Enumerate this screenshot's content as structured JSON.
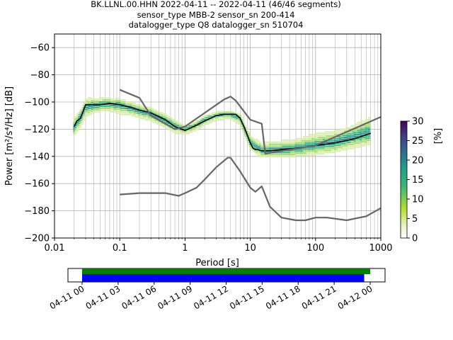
{
  "title_lines": [
    "BK.LLNL.00.HHN   2022-04-11 -- 2022-04-11  (46/46 segments)",
    "sensor_type MBB-2 sensor_sn 200-414",
    "datalogger_type Q8 datalogger_sn 510704"
  ],
  "chart_data": [
    {
      "type": "heatmap",
      "xlabel": "Period [s]",
      "ylabel": "Power [m²/s⁴/Hz] [dB]",
      "xscale": "log",
      "xlim": [
        0.01,
        1000
      ],
      "ylim": [
        -200,
        -50
      ],
      "x_ticks": [
        0.01,
        0.1,
        1,
        10,
        100,
        1000
      ],
      "x_tick_labels": [
        "0.01",
        "0.1",
        "1",
        "10",
        "100",
        "1000"
      ],
      "y_ticks": [
        -200,
        -180,
        -160,
        -140,
        -120,
        -100,
        -80,
        -60
      ],
      "y_tick_labels": [
        "−200",
        "−180",
        "−160",
        "−140",
        "−120",
        "−100",
        "−80",
        "−60"
      ],
      "grid": true,
      "colormap": "viridis_white",
      "series": [
        {
          "role": "median",
          "color": "#000000",
          "x": [
            0.02,
            0.022,
            0.025,
            0.03,
            0.04,
            0.05,
            0.07,
            0.1,
            0.15,
            0.2,
            0.3,
            0.5,
            0.7,
            1.0,
            1.5,
            2.0,
            3.0,
            4.0,
            5.0,
            6.0,
            7.0,
            8.0,
            10.0,
            11.0,
            12.0,
            13.0,
            15.0,
            17.0,
            20.0,
            30.0,
            50.0,
            100.0,
            200.0,
            400.0,
            700.0
          ],
          "values": [
            -118,
            -114,
            -112,
            -102,
            -102,
            -102,
            -101,
            -102,
            -104,
            -106,
            -108,
            -113,
            -118,
            -121,
            -117,
            -114,
            -110,
            -109,
            -109,
            -109,
            -112,
            -118,
            -130,
            -134,
            -135,
            -135,
            -136,
            -136,
            -136,
            -135,
            -134,
            -132,
            -130,
            -127,
            -123
          ]
        },
        {
          "role": "noise_model_high",
          "color": "#666666",
          "x": [
            0.1,
            0.2,
            0.3,
            0.7,
            1.0,
            2.0,
            4.0,
            5.0,
            6.0,
            10.0,
            15.0,
            17.0,
            30.0,
            100.0,
            1000.0
          ],
          "values": [
            -91,
            -97,
            -110,
            -120,
            -118,
            -108,
            -98,
            -96,
            -99,
            -113,
            -116,
            -138,
            -136,
            -132,
            -111
          ]
        },
        {
          "role": "noise_model_low",
          "color": "#666666",
          "x": [
            0.1,
            0.2,
            0.5,
            0.8,
            1.0,
            1.5,
            2.0,
            3.0,
            4.5,
            5.0,
            7.0,
            10.0,
            12.0,
            15.0,
            20.0,
            30.0,
            50.0,
            70.0,
            100.0,
            150.0,
            300.0,
            600.0,
            1000.0
          ],
          "values": [
            -168,
            -167,
            -167,
            -169,
            -167,
            -163,
            -157,
            -148,
            -141,
            -141,
            -151,
            -163,
            -166,
            -162,
            -177,
            -185,
            -187,
            -187,
            -185,
            -185,
            -187,
            -184,
            -178
          ]
        }
      ],
      "psd_bins": [
        {
          "x": 0.02,
          "values": [
            -124,
            -120,
            -117,
            -112
          ]
        },
        {
          "x": 0.025,
          "values": [
            -118,
            -113,
            -110,
            -106
          ]
        },
        {
          "x": 0.03,
          "values": [
            -110,
            -106,
            -102,
            -98
          ]
        },
        {
          "x": 0.04,
          "values": [
            -107,
            -104,
            -101,
            -97
          ]
        },
        {
          "x": 0.05,
          "values": [
            -106,
            -103,
            -101,
            -97
          ]
        },
        {
          "x": 0.07,
          "values": [
            -106,
            -103,
            -100,
            -97
          ]
        },
        {
          "x": 0.1,
          "values": [
            -108,
            -104,
            -101,
            -98
          ]
        },
        {
          "x": 0.15,
          "values": [
            -109,
            -106,
            -103,
            -100
          ]
        },
        {
          "x": 0.2,
          "values": [
            -111,
            -108,
            -105,
            -102
          ]
        },
        {
          "x": 0.3,
          "values": [
            -113,
            -110,
            -107,
            -104
          ]
        },
        {
          "x": 0.5,
          "values": [
            -118,
            -115,
            -112,
            -109
          ]
        },
        {
          "x": 0.7,
          "values": [
            -122,
            -119,
            -116,
            -114
          ]
        },
        {
          "x": 1.0,
          "values": [
            -123,
            -121,
            -119,
            -117
          ]
        },
        {
          "x": 1.5,
          "values": [
            -120,
            -118,
            -116,
            -114
          ]
        },
        {
          "x": 2.0,
          "values": [
            -116,
            -114,
            -112,
            -110
          ]
        },
        {
          "x": 3.0,
          "values": [
            -113,
            -111,
            -109,
            -108
          ]
        },
        {
          "x": 4.0,
          "values": [
            -112,
            -110,
            -108,
            -107
          ]
        },
        {
          "x": 5.0,
          "values": [
            -112,
            -110,
            -108,
            -107
          ]
        },
        {
          "x": 7.0,
          "values": [
            -116,
            -113,
            -111,
            -109
          ]
        },
        {
          "x": 10.0,
          "values": [
            -134,
            -131,
            -128,
            -125
          ]
        },
        {
          "x": 15.0,
          "values": [
            -140,
            -137,
            -134,
            -130
          ]
        },
        {
          "x": 20.0,
          "values": [
            -140,
            -137,
            -133,
            -129
          ]
        },
        {
          "x": 30.0,
          "values": [
            -140,
            -137,
            -133,
            -129
          ]
        },
        {
          "x": 50.0,
          "values": [
            -139,
            -136,
            -132,
            -127
          ]
        },
        {
          "x": 100.0,
          "values": [
            -138,
            -134,
            -129,
            -124
          ]
        },
        {
          "x": 200.0,
          "values": [
            -136,
            -132,
            -127,
            -121
          ]
        },
        {
          "x": 400.0,
          "values": [
            -133,
            -128,
            -122,
            -117
          ]
        },
        {
          "x": 700.0,
          "values": [
            -130,
            -125,
            -119,
            -111
          ]
        }
      ],
      "colorbar": {
        "label": "[%]",
        "min": 0,
        "max": 30,
        "ticks": [
          0,
          5,
          10,
          15,
          20,
          25,
          30
        ],
        "tick_labels": [
          "0",
          "5",
          "10",
          "15",
          "20",
          "25",
          "30"
        ]
      }
    },
    {
      "type": "bar",
      "role": "data_coverage",
      "xlim": [
        "2022-04-11 00:00",
        "2022-04-12 00:00"
      ],
      "x_tick_labels": [
        "04-11 00",
        "04-11 03",
        "04-11 06",
        "04-11 09",
        "04-11 12",
        "04-11 15",
        "04-11 18",
        "04-11 21",
        "04-12 00"
      ],
      "series": [
        {
          "color": "#008000",
          "start": "2022-04-11 00:00",
          "end": "2022-04-12 00:00"
        },
        {
          "color": "#0000ff",
          "start": "2022-04-11 00:00",
          "end": "2022-04-11 23:30"
        }
      ]
    }
  ]
}
